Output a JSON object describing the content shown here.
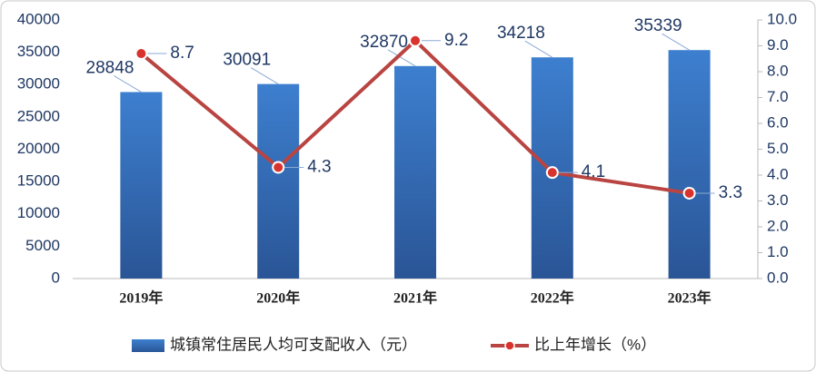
{
  "chart_data": {
    "type": "combo",
    "categories": [
      "2019年",
      "2020年",
      "2021年",
      "2022年",
      "2023年"
    ],
    "series": [
      {
        "name": "城镇常住居民人均可支配收入（元）",
        "type": "bar",
        "color": "#3a78c4",
        "values": [
          28848,
          30091,
          32870,
          34218,
          35339
        ]
      },
      {
        "name": "比上年增长（%）",
        "type": "line",
        "axis": "y2",
        "color": "#b94441",
        "values": [
          8.7,
          4.3,
          9.2,
          4.1,
          3.3
        ]
      }
    ],
    "ylim": [
      0,
      40000
    ],
    "yticks": [
      0,
      5000,
      10000,
      15000,
      20000,
      25000,
      30000,
      35000,
      40000
    ],
    "y2lim": [
      0,
      10
    ],
    "y2ticks": [
      {
        "value": 0,
        "label": "0.0"
      },
      {
        "value": 1,
        "label": "1.0"
      },
      {
        "value": 2,
        "label": "2.0"
      },
      {
        "value": 3,
        "label": "3.0"
      },
      {
        "value": 4,
        "label": "4.0"
      },
      {
        "value": 5,
        "label": "5.0"
      },
      {
        "value": 6,
        "label": "6.0"
      },
      {
        "value": 7,
        "label": "7.0"
      },
      {
        "value": 8,
        "label": "8.0"
      },
      {
        "value": 9,
        "label": "9.0"
      },
      {
        "value": 10,
        "label": "10.0"
      }
    ],
    "grid": false,
    "legend": "bottom"
  }
}
